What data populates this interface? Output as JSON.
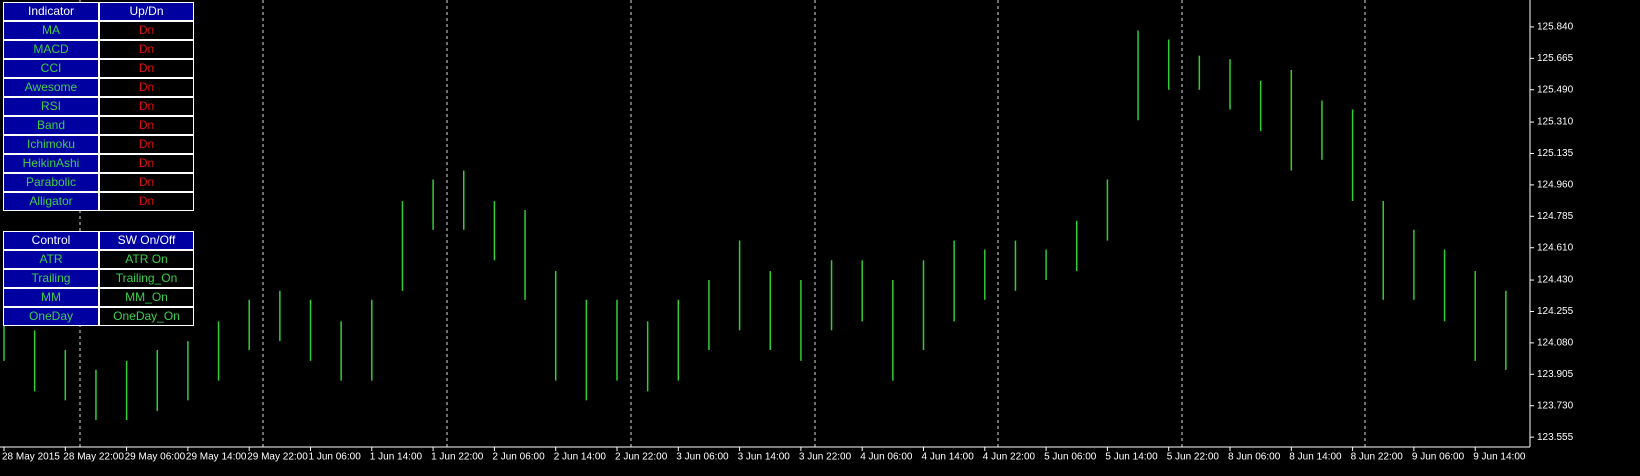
{
  "panel": {
    "indicators": {
      "header": [
        "Indicator",
        "Up/Dn"
      ],
      "rows": [
        [
          "MA",
          "Dn"
        ],
        [
          "MACD",
          "Dn"
        ],
        [
          "CCI",
          "Dn"
        ],
        [
          "Awesome",
          "Dn"
        ],
        [
          "RSI",
          "Dn"
        ],
        [
          "Band",
          "Dn"
        ],
        [
          "Ichimoku",
          "Dn"
        ],
        [
          "HeikinAshi",
          "Dn"
        ],
        [
          "Parabolic",
          "Dn"
        ],
        [
          "Alligator",
          "Dn"
        ]
      ]
    },
    "controls": {
      "header": [
        "Control",
        "SW On/Off"
      ],
      "rows": [
        [
          "ATR",
          "ATR On"
        ],
        [
          "Trailing",
          "Trailing_On"
        ],
        [
          "MM",
          "MM_On"
        ],
        [
          "OneDay",
          "OneDay_On"
        ]
      ]
    }
  },
  "chart_data": {
    "type": "range",
    "color": "#32cd32",
    "categories": [
      "28 May 2015",
      null,
      "28 May 22:00",
      null,
      "29 May 06:00",
      null,
      "29 May 14:00",
      null,
      "29 May 22:00",
      null,
      "1 Jun 06:00",
      null,
      "1 Jun 14:00",
      null,
      "1 Jun 22:00",
      null,
      "2 Jun 06:00",
      null,
      "2 Jun 14:00",
      null,
      "2 Jun 22:00",
      null,
      "3 Jun 06:00",
      null,
      "3 Jun 14:00",
      null,
      "3 Jun 22:00",
      null,
      "4 Jun 06:00",
      null,
      "4 Jun 14:00",
      null,
      "4 Jun 22:00",
      null,
      "5 Jun 06:00",
      null,
      "5 Jun 14:00",
      null,
      "5 Jun 22:00",
      null,
      "8 Jun 06:00",
      null,
      "8 Jun 14:00",
      null,
      "8 Jun 22:00",
      null,
      "9 Jun 06:00",
      null,
      "9 Jun 14:00",
      null
    ],
    "high": [
      124.32,
      124.15,
      124.04,
      123.93,
      123.98,
      124.04,
      124.09,
      124.2,
      124.32,
      124.37,
      124.32,
      124.2,
      124.32,
      124.87,
      124.99,
      125.04,
      124.87,
      124.82,
      124.48,
      124.32,
      124.32,
      124.2,
      124.32,
      124.43,
      124.65,
      124.48,
      124.43,
      124.54,
      124.54,
      124.43,
      124.54,
      124.65,
      124.6,
      124.65,
      124.6,
      124.76,
      124.99,
      125.82,
      125.77,
      125.68,
      125.66,
      125.54,
      125.6,
      125.43,
      125.38,
      124.87,
      124.71,
      124.6,
      124.48,
      124.37
    ],
    "low": [
      123.98,
      123.81,
      123.76,
      123.65,
      123.65,
      123.7,
      123.76,
      123.87,
      124.04,
      124.09,
      123.98,
      123.87,
      123.87,
      124.37,
      124.71,
      124.71,
      124.54,
      124.32,
      123.87,
      123.76,
      123.87,
      123.81,
      123.87,
      124.04,
      124.15,
      124.04,
      123.98,
      124.15,
      124.2,
      123.87,
      124.04,
      124.2,
      124.32,
      124.37,
      124.43,
      124.48,
      124.65,
      125.32,
      125.49,
      125.49,
      125.38,
      125.26,
      125.04,
      125.1,
      124.87,
      124.32,
      124.32,
      124.2,
      123.98,
      123.93
    ],
    "ylim": [
      123.5,
      125.99
    ],
    "yticks": [
      {
        "value": 125.84,
        "label": "125.840"
      },
      125.665,
      {
        "value": 125.49,
        "label": "125.490"
      },
      {
        "value": 125.31,
        "label": "125.310"
      },
      125.135,
      {
        "value": 124.96,
        "label": "124.960"
      },
      124.785,
      {
        "value": 124.61,
        "label": "124.610"
      },
      {
        "value": 124.43,
        "label": "124.430"
      },
      124.255,
      {
        "value": 124.08,
        "label": "124.080"
      },
      123.905,
      {
        "value": 123.73,
        "label": "123.730"
      },
      123.555
    ]
  }
}
